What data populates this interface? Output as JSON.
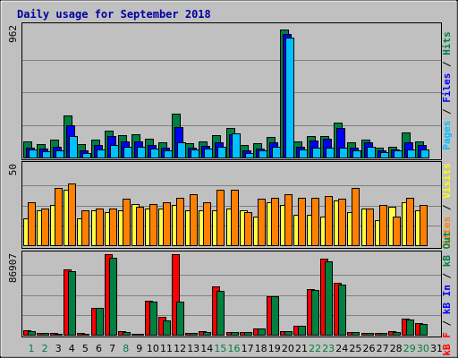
{
  "chart_data": [
    {
      "type": "bar",
      "panel": "hits-files-pages",
      "title": "Daily usage for September 2018",
      "categories": [
        "1",
        "2",
        "3",
        "4",
        "5",
        "6",
        "7",
        "8",
        "9",
        "10",
        "11",
        "12",
        "13",
        "14",
        "15",
        "16",
        "17",
        "18",
        "19",
        "20",
        "21",
        "22",
        "23",
        "24",
        "25",
        "26",
        "27",
        "28",
        "29",
        "30",
        "31"
      ],
      "y_max_label": "962",
      "ylim": [
        0,
        962
      ],
      "ylabel_parts": [
        {
          "text": "Pages",
          "color": "#00c0ff"
        },
        {
          "text": " / ",
          "color": "#000000"
        },
        {
          "text": "Files",
          "color": "#0000ff"
        },
        {
          "text": " / ",
          "color": "#000000"
        },
        {
          "text": "Hits",
          "color": "#008040"
        }
      ],
      "series": [
        {
          "name": "Hits",
          "color": "#008040",
          "values": [
            120,
            100,
            130,
            310,
            100,
            135,
            200,
            165,
            170,
            140,
            115,
            320,
            105,
            120,
            165,
            215,
            90,
            105,
            150,
            940,
            120,
            155,
            160,
            255,
            110,
            135,
            75,
            80,
            185,
            120,
            0
          ]
        },
        {
          "name": "Files",
          "color": "#0000ff",
          "values": [
            75,
            65,
            80,
            240,
            55,
            95,
            160,
            120,
            120,
            90,
            70,
            225,
            70,
            85,
            110,
            170,
            50,
            65,
            110,
            910,
            80,
            125,
            140,
            220,
            70,
            115,
            55,
            60,
            110,
            90,
            0
          ]
        },
        {
          "name": "Pages",
          "color": "#00c0ff",
          "values": [
            60,
            45,
            55,
            160,
            30,
            60,
            90,
            80,
            80,
            65,
            50,
            115,
            60,
            65,
            80,
            180,
            35,
            50,
            80,
            885,
            60,
            70,
            70,
            70,
            50,
            80,
            40,
            50,
            60,
            60,
            0
          ]
        }
      ]
    },
    {
      "type": "bar",
      "panel": "visits-sites",
      "categories": [
        "1",
        "2",
        "3",
        "4",
        "5",
        "6",
        "7",
        "8",
        "9",
        "10",
        "11",
        "12",
        "13",
        "14",
        "15",
        "16",
        "17",
        "18",
        "19",
        "20",
        "21",
        "22",
        "23",
        "24",
        "25",
        "26",
        "27",
        "28",
        "29",
        "30",
        "31"
      ],
      "y_max_label": "50",
      "ylim": [
        0,
        50
      ],
      "ylabel_parts": [
        {
          "text": "Sites",
          "color": "#ff8000"
        },
        {
          "text": " / ",
          "color": "#000000"
        },
        {
          "text": "Visits",
          "color": "#ffff00"
        }
      ],
      "series": [
        {
          "name": "Visits",
          "color": "#ffff40",
          "values": [
            17,
            22,
            25,
            35,
            17,
            22,
            21,
            22,
            26,
            23,
            23,
            25,
            22,
            22,
            22,
            23,
            22,
            18,
            27,
            25,
            19,
            19,
            18,
            28,
            21,
            23,
            16,
            24,
            27,
            22,
            0
          ]
        },
        {
          "name": "Sites",
          "color": "#ff8000",
          "values": [
            27,
            23,
            36,
            39,
            22,
            23,
            23,
            29,
            24,
            26,
            27,
            30,
            32,
            27,
            35,
            35,
            21,
            29,
            30,
            32,
            30,
            30,
            31,
            29,
            36,
            23,
            25,
            18,
            30,
            25,
            0
          ]
        }
      ]
    },
    {
      "type": "bar",
      "panel": "kbin-kbout-kbf",
      "categories": [
        "1",
        "2",
        "3",
        "4",
        "5",
        "6",
        "7",
        "8",
        "9",
        "10",
        "11",
        "12",
        "13",
        "14",
        "15",
        "16",
        "17",
        "18",
        "19",
        "20",
        "21",
        "22",
        "23",
        "24",
        "25",
        "26",
        "27",
        "28",
        "29",
        "30",
        "31"
      ],
      "category_colors": [
        "#008040",
        "#008040",
        "#000000",
        "#000000",
        "#000000",
        "#000000",
        "#000000",
        "#008040",
        "#000000",
        "#000000",
        "#000000",
        "#000000",
        "#000000",
        "#000000",
        "#008040",
        "#008040",
        "#000000",
        "#000000",
        "#000000",
        "#000000",
        "#000000",
        "#008040",
        "#008040",
        "#000000",
        "#000000",
        "#000000",
        "#000000",
        "#000000",
        "#008040",
        "#008040",
        "#000000"
      ],
      "y_max_label": "86907",
      "ylim": [
        0,
        86907
      ],
      "ylabel_parts": [
        {
          "text": "kB F",
          "color": "#ff0000"
        },
        {
          "text": " / ",
          "color": "#000000"
        },
        {
          "text": "kB In",
          "color": "#0000ff"
        },
        {
          "text": " / ",
          "color": "#000000"
        },
        {
          "text": "kB Out",
          "color": "#008040"
        }
      ],
      "series": [
        {
          "name": "kB F",
          "color": "#ff0000",
          "values": [
            5300,
            1600,
            1500,
            71200,
            1500,
            29000,
            88000,
            4200,
            1200,
            37000,
            20000,
            88000,
            2000,
            3600,
            53000,
            3000,
            3000,
            7000,
            42000,
            3500,
            10000,
            50000,
            83000,
            57000,
            2500,
            2400,
            1800,
            4200,
            17200,
            13000,
            0
          ]
        },
        {
          "name": "kB Out",
          "color": "#008040",
          "values": [
            3500,
            1600,
            1200,
            69700,
            1000,
            29000,
            84000,
            3000,
            1200,
            36000,
            16000,
            36000,
            2000,
            3300,
            48000,
            3000,
            3000,
            7000,
            42000,
            3500,
            10000,
            49000,
            80000,
            55000,
            2500,
            2400,
            1800,
            3300,
            16500,
            12000,
            0
          ]
        }
      ]
    }
  ]
}
